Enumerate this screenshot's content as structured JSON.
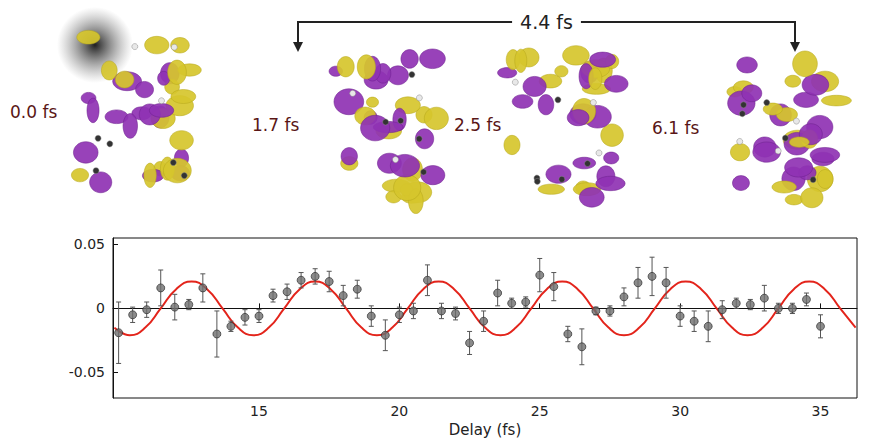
{
  "chart_data": {
    "type": "scatter",
    "x_label": "Delay (fs)",
    "xlim": [
      9.8,
      36.3
    ],
    "xticks": [
      15,
      20,
      25,
      30,
      35
    ],
    "ylim": [
      -0.07,
      0.055
    ],
    "yticks": [
      -0.05,
      0,
      0.05
    ],
    "grid": false,
    "annotations": {
      "snapshots": [
        "0.0 fs",
        "1.7 fs",
        "2.5 fs",
        "6.1 fs"
      ],
      "period": "4.4 fs"
    },
    "series": [
      {
        "type": "scatter",
        "color": "#6e6e6e",
        "marker": "circle",
        "x": [
          10.0,
          10.5,
          11.0,
          11.5,
          12.0,
          12.5,
          13.0,
          13.5,
          14.0,
          14.5,
          15.0,
          15.5,
          16.0,
          16.5,
          17.0,
          17.5,
          18.0,
          18.5,
          19.0,
          19.5,
          20.0,
          20.5,
          21.0,
          21.5,
          22.0,
          22.5,
          23.0,
          23.5,
          24.0,
          24.5,
          25.0,
          25.5,
          26.0,
          26.5,
          27.0,
          27.5,
          28.0,
          28.5,
          29.0,
          29.5,
          30.0,
          30.5,
          31.0,
          31.5,
          32.0,
          32.5,
          33.0,
          33.5,
          34.0,
          34.5,
          35.0
        ],
        "values": [
          -0.019,
          -0.005,
          -0.001,
          0.016,
          0.001,
          0.003,
          0.016,
          -0.02,
          -0.014,
          -0.007,
          -0.006,
          0.01,
          0.013,
          0.022,
          0.025,
          0.021,
          0.01,
          0.015,
          -0.006,
          -0.021,
          -0.005,
          -0.002,
          0.022,
          -0.002,
          -0.004,
          -0.027,
          -0.01,
          0.012,
          0.004,
          0.005,
          0.026,
          0.017,
          -0.02,
          -0.03,
          -0.002,
          -0.002,
          0.009,
          0.02,
          0.025,
          0.02,
          -0.006,
          -0.01,
          -0.014,
          -0.001,
          0.004,
          0.003,
          0.008,
          0.0,
          0.0,
          0.007,
          -0.014
        ],
        "errors": [
          0.024,
          0.006,
          0.006,
          0.014,
          0.01,
          0.004,
          0.011,
          0.018,
          0.004,
          0.006,
          0.005,
          0.005,
          0.006,
          0.006,
          0.006,
          0.008,
          0.008,
          0.007,
          0.008,
          0.012,
          0.006,
          0.006,
          0.012,
          0.006,
          0.005,
          0.009,
          0.008,
          0.01,
          0.004,
          0.004,
          0.013,
          0.011,
          0.006,
          0.014,
          0.003,
          0.004,
          0.007,
          0.012,
          0.015,
          0.012,
          0.008,
          0.008,
          0.012,
          0.007,
          0.004,
          0.004,
          0.01,
          0.004,
          0.004,
          0.005,
          0.009
        ]
      },
      {
        "type": "line",
        "color": "#e3241b",
        "line_style": "solid",
        "x": [
          9.85,
          10.4,
          10.95,
          11.5,
          12.05,
          12.6,
          13.15,
          13.7,
          14.25,
          14.8,
          15.35,
          15.9,
          16.45,
          17.0,
          17.55,
          18.1,
          18.65,
          19.2,
          19.75,
          20.3,
          20.85,
          21.4,
          21.95,
          22.5,
          23.05,
          23.6,
          24.15,
          24.7,
          25.25,
          25.8,
          26.35,
          26.9,
          27.45,
          28.0,
          28.55,
          29.1,
          29.65,
          30.2,
          30.75,
          31.3,
          31.85,
          32.4,
          32.95,
          33.5,
          34.05,
          34.6,
          35.15,
          35.7,
          36.25
        ],
        "values": [
          -0.015,
          -0.021,
          -0.015,
          0,
          0.015,
          0.021,
          0.015,
          0,
          -0.015,
          -0.021,
          -0.015,
          0,
          0.015,
          0.021,
          0.015,
          0,
          -0.015,
          -0.021,
          -0.015,
          0,
          0.015,
          0.021,
          0.015,
          0,
          -0.015,
          -0.021,
          -0.015,
          0,
          0.015,
          0.021,
          0.015,
          0,
          -0.015,
          -0.021,
          -0.015,
          0,
          0.015,
          0.021,
          0.015,
          0,
          -0.015,
          -0.021,
          -0.015,
          0,
          0.015,
          0.021,
          0.015,
          0,
          -0.015
        ]
      }
    ]
  }
}
